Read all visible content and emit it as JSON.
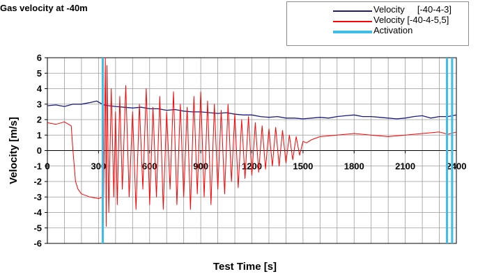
{
  "chart_data": {
    "type": "line",
    "title": "Gas velocity at -40m",
    "xlabel": "Test Time [s]",
    "ylabel": "Velocity [m/s]",
    "xlim": [
      0,
      2400
    ],
    "ylim": [
      -6,
      6
    ],
    "x_ticks": [
      "0",
      "300",
      "600",
      "900",
      "1200",
      "1500",
      "1800",
      "2100",
      "2400"
    ],
    "y_ticks": [
      "6",
      "5",
      "4",
      "3",
      "2",
      "1",
      "0",
      "-1",
      "-2",
      "-3",
      "-4",
      "-5",
      "-6"
    ],
    "grid": true,
    "legend_position": "top-right",
    "series": [
      {
        "name": "Velocity     [-40-4-3]",
        "color": "#1c1c80",
        "x": [
          0,
          50,
          100,
          150,
          200,
          250,
          290,
          330,
          360,
          400,
          450,
          500,
          550,
          600,
          650,
          700,
          750,
          800,
          850,
          900,
          950,
          1000,
          1050,
          1100,
          1150,
          1200,
          1250,
          1300,
          1350,
          1400,
          1450,
          1500,
          1550,
          1600,
          1650,
          1700,
          1750,
          1800,
          1850,
          1900,
          1950,
          2000,
          2050,
          2100,
          2150,
          2200,
          2250,
          2300,
          2350,
          2400
        ],
        "y": [
          2.9,
          2.95,
          2.85,
          3.0,
          3.0,
          3.1,
          3.2,
          2.95,
          2.9,
          2.85,
          2.8,
          2.75,
          2.8,
          2.7,
          2.7,
          2.6,
          2.65,
          2.55,
          2.5,
          2.5,
          2.45,
          2.4,
          2.45,
          2.35,
          2.3,
          2.3,
          2.2,
          2.15,
          2.2,
          2.1,
          2.1,
          2.05,
          2.1,
          2.15,
          2.1,
          2.2,
          2.25,
          2.3,
          2.2,
          2.2,
          2.15,
          2.1,
          2.05,
          2.1,
          2.2,
          2.25,
          2.1,
          2.2,
          2.2,
          2.3
        ]
      },
      {
        "name": "Velocity [-40-4-5,5]",
        "color": "#ff0000",
        "x": [
          0,
          50,
          100,
          140,
          150,
          165,
          180,
          200,
          250,
          300,
          330,
          340,
          345,
          350,
          360,
          375,
          390,
          400,
          410,
          425,
          440,
          460,
          480,
          500,
          520,
          540,
          560,
          580,
          600,
          620,
          640,
          660,
          680,
          700,
          720,
          740,
          760,
          780,
          800,
          820,
          840,
          860,
          880,
          900,
          920,
          940,
          960,
          980,
          1000,
          1020,
          1040,
          1060,
          1080,
          1100,
          1120,
          1140,
          1160,
          1180,
          1200,
          1220,
          1240,
          1260,
          1280,
          1300,
          1320,
          1340,
          1360,
          1380,
          1400,
          1420,
          1440,
          1460,
          1480,
          1500,
          1520,
          1550,
          1600,
          1700,
          1800,
          1900,
          2000,
          2100,
          2200,
          2300,
          2350,
          2400
        ],
        "y": [
          1.8,
          1.7,
          1.85,
          1.6,
          0.0,
          -2.0,
          -2.5,
          -2.8,
          -3.0,
          -3.1,
          -3.0,
          6.0,
          -4.9,
          5.5,
          -4.0,
          4.0,
          -3.0,
          2.5,
          -3.5,
          3.5,
          -2.5,
          4.2,
          -3.0,
          2.5,
          -3.8,
          3.0,
          -2.5,
          4.0,
          -3.5,
          2.8,
          -3.0,
          3.5,
          -3.8,
          2.5,
          -2.5,
          3.8,
          -3.5,
          3.0,
          -3.0,
          2.8,
          -3.8,
          3.5,
          -2.8,
          3.8,
          -3.0,
          3.2,
          -3.5,
          3.0,
          -2.5,
          2.6,
          -2.8,
          3.0,
          -2.0,
          2.4,
          -2.4,
          2.0,
          -1.8,
          2.2,
          -1.6,
          1.8,
          -1.4,
          1.6,
          -1.2,
          1.4,
          -1.0,
          1.5,
          -1.0,
          1.3,
          -0.8,
          1.0,
          -0.6,
          0.9,
          -0.3,
          0.6,
          0.5,
          0.7,
          0.9,
          1.0,
          1.1,
          1.0,
          0.9,
          1.0,
          1.1,
          1.2,
          1.05,
          1.2
        ]
      },
      {
        "name": "Activation",
        "color": "#3dbde8",
        "x_values": [
          325,
          2345,
          2375
        ]
      }
    ]
  }
}
